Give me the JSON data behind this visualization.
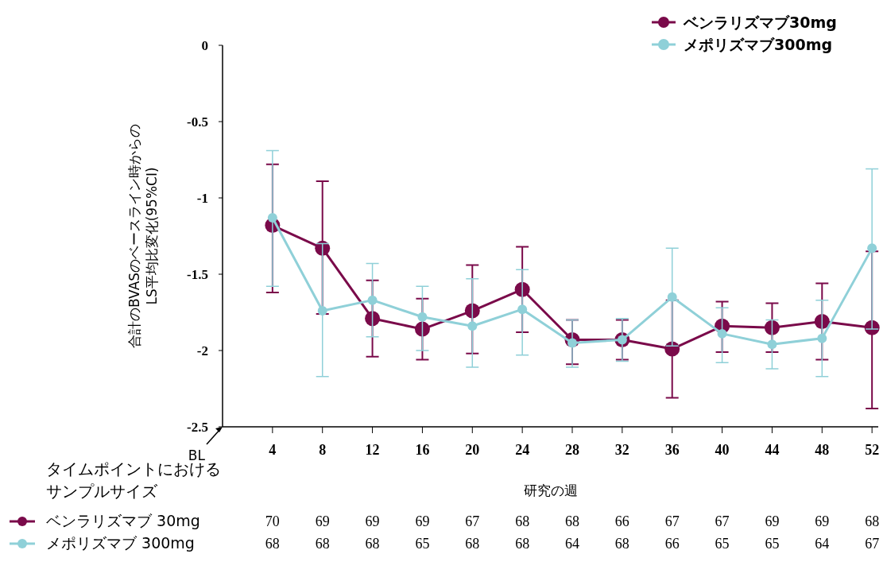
{
  "chart_data": {
    "type": "line",
    "xlabel": "研究の週",
    "ylabel": "合計のBVASのベースライン時からの\nLS平均比変化(95%CI)",
    "x": [
      4,
      8,
      12,
      16,
      20,
      24,
      28,
      32,
      36,
      40,
      44,
      48,
      52
    ],
    "xlim": [
      0,
      52.5
    ],
    "xticks": [
      4,
      8,
      12,
      16,
      20,
      24,
      28,
      32,
      36,
      40,
      44,
      48,
      52
    ],
    "ylim": [
      -2.5,
      0
    ],
    "yticks": [
      0,
      -0.5,
      -1,
      -1.5,
      -2,
      -2.5
    ],
    "marker": "circle",
    "line_style": "solid",
    "grid": false,
    "legend": "top right",
    "series": [
      {
        "name": "ベンラリズマブ30mg",
        "color": "#7a0a4a",
        "values": [
          -1.18,
          -1.33,
          -1.79,
          -1.86,
          -1.74,
          -1.6,
          -1.93,
          -1.93,
          -1.99,
          -1.84,
          -1.85,
          -1.81,
          -1.85
        ],
        "errors": [
          [
            -1.62,
            -0.78
          ],
          [
            -1.76,
            -0.89
          ],
          [
            -2.04,
            -1.54
          ],
          [
            -2.06,
            -1.66
          ],
          [
            -2.02,
            -1.44
          ],
          [
            -1.88,
            -1.32
          ],
          [
            -2.09,
            -1.8
          ],
          [
            -2.06,
            -1.8
          ],
          [
            -2.31,
            -1.67
          ],
          [
            -2.01,
            -1.68
          ],
          [
            -2.01,
            -1.69
          ],
          [
            -2.06,
            -1.56
          ],
          [
            -2.38,
            -1.35
          ]
        ]
      },
      {
        "name": "メポリズマブ300mg",
        "color": "#8fd0d8",
        "values": [
          -1.13,
          -1.74,
          -1.67,
          -1.78,
          -1.84,
          -1.73,
          -1.95,
          -1.93,
          -1.65,
          -1.89,
          -1.96,
          -1.92,
          -1.33
        ],
        "errors": [
          [
            -1.58,
            -0.69
          ],
          [
            -2.17,
            -1.3
          ],
          [
            -1.91,
            -1.43
          ],
          [
            -2.0,
            -1.58
          ],
          [
            -2.11,
            -1.53
          ],
          [
            -2.03,
            -1.47
          ],
          [
            -2.11,
            -1.8
          ],
          [
            -2.07,
            -1.79
          ],
          [
            -1.97,
            -1.33
          ],
          [
            -2.08,
            -1.72
          ],
          [
            -2.12,
            -1.8
          ],
          [
            -2.17,
            -1.67
          ],
          [
            -1.86,
            -0.81
          ]
        ]
      }
    ],
    "annotations": [
      "BL",
      "タイムポイントにおける",
      "サンプルサイズ",
      "ベンラリズマブ 30mg",
      "70 69 69 69 67 68 68 66 67 67 69 69 68",
      "メポリズマブ 300mg",
      "68 68 68 65 68 68 64 68 66 65 65 64 67"
    ]
  }
}
